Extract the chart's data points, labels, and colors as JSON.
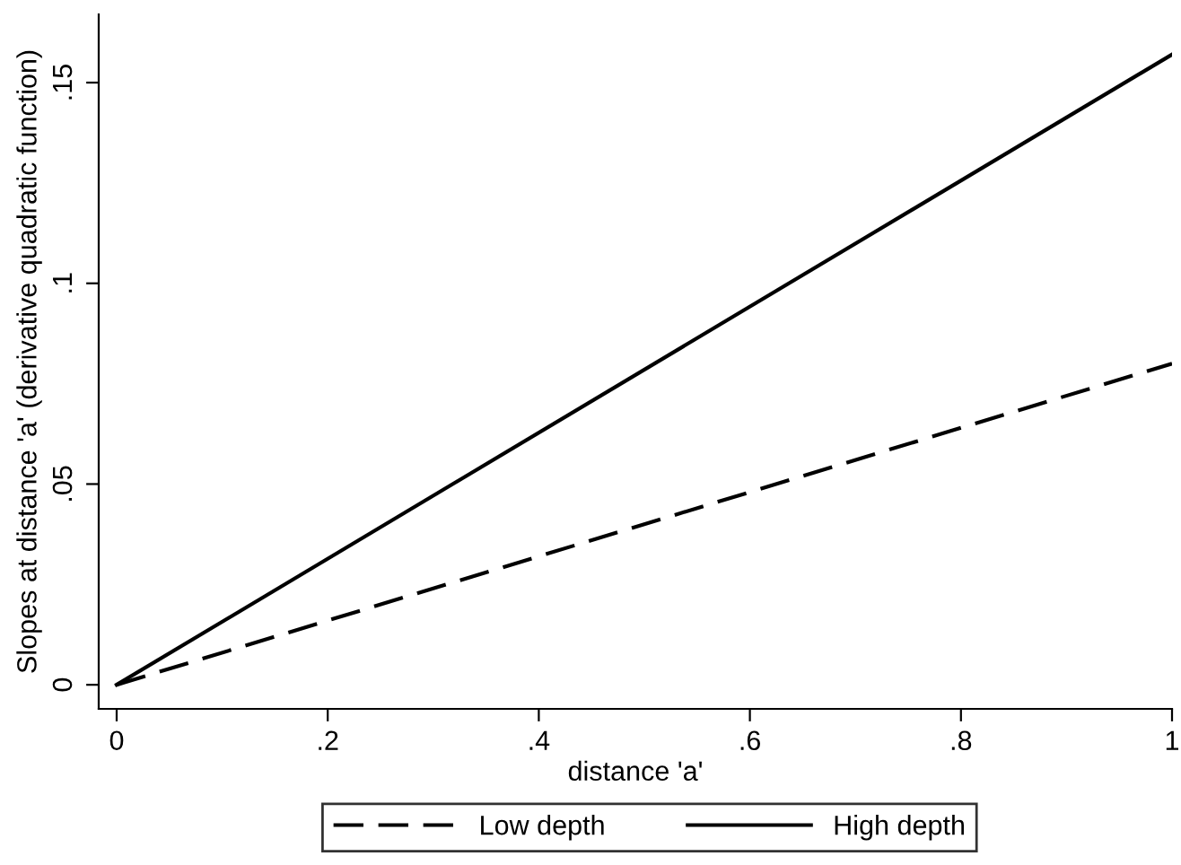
{
  "chart_data": {
    "type": "line",
    "xlabel": "distance 'a'",
    "ylabel": "Slopes at distance 'a' (derivative quadratic function)",
    "x": [
      0,
      1
    ],
    "series": [
      {
        "name": "Low depth",
        "color": "#000000",
        "values": [
          0,
          0.08
        ],
        "line_style": "dashed"
      },
      {
        "name": "High depth",
        "color": "#000000",
        "values": [
          0,
          0.157
        ],
        "line_style": "solid"
      }
    ],
    "xlim": [
      -0.017,
      1.0
    ],
    "ylim": [
      -0.006,
      0.167
    ],
    "xticks": [
      0,
      {
        "value": 0.2,
        "label": ".2"
      },
      {
        "value": 0.4,
        "label": ".4"
      },
      {
        "value": 0.6,
        "label": ".6"
      },
      {
        "value": 0.8,
        "label": ".8"
      },
      1
    ],
    "yticks": [
      0,
      {
        "value": 0.05,
        "label": ".05"
      },
      {
        "value": 0.1,
        "label": ".1"
      },
      {
        "value": 0.15,
        "label": ".15"
      }
    ],
    "grid": false,
    "legend": "bottom",
    "marker": "none"
  }
}
